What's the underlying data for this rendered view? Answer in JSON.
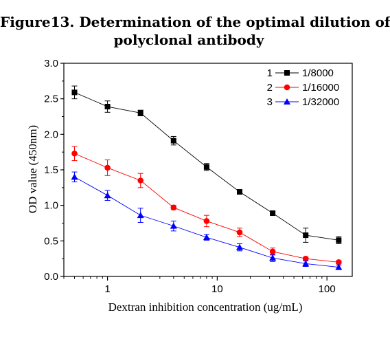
{
  "figure": {
    "title_line1": "Figure13. Determination of the optimal dilution of",
    "title_line2": "polyclonal antibody"
  },
  "chart_data": {
    "type": "line",
    "xscale": "log",
    "xlabel": "Dextran inhibition concentration (ug/mL)",
    "ylabel": "OD value (450nm)",
    "xlim": [
      0.4,
      170
    ],
    "ylim": [
      0.0,
      3.0
    ],
    "x_ticks": [
      1,
      10,
      100
    ],
    "x_tick_labels": [
      "1",
      "10",
      "100"
    ],
    "y_ticks": [
      0.0,
      0.5,
      1.0,
      1.5,
      2.0,
      2.5,
      3.0
    ],
    "y_tick_labels": [
      "0.0",
      "0.5",
      "1.0",
      "1.5",
      "2.0",
      "2.5",
      "3.0"
    ],
    "x": [
      0.5,
      1,
      2,
      4,
      8,
      16,
      32,
      64,
      128
    ],
    "legend_position": "top-right",
    "series": [
      {
        "number": "1",
        "name": "1/8000",
        "color": "#000000",
        "marker": "square",
        "values": [
          2.59,
          2.39,
          2.3,
          1.91,
          1.54,
          1.19,
          0.89,
          0.58,
          0.51
        ],
        "errors": [
          0.09,
          0.08,
          0.04,
          0.06,
          0.05,
          0.02,
          0.03,
          0.1,
          0.05
        ]
      },
      {
        "number": "2",
        "name": "1/16000",
        "color": "#ff0000",
        "marker": "circle",
        "values": [
          1.73,
          1.53,
          1.35,
          0.97,
          0.78,
          0.62,
          0.35,
          0.25,
          0.2
        ],
        "errors": [
          0.1,
          0.11,
          0.1,
          0.03,
          0.08,
          0.06,
          0.05,
          0.02,
          0.02
        ]
      },
      {
        "number": "3",
        "name": "1/32000",
        "color": "#0000ff",
        "marker": "triangle",
        "values": [
          1.4,
          1.14,
          0.86,
          0.71,
          0.55,
          0.41,
          0.26,
          0.18,
          0.13
        ],
        "errors": [
          0.07,
          0.07,
          0.1,
          0.07,
          0.04,
          0.05,
          0.05,
          0.04,
          0.03
        ]
      }
    ]
  }
}
